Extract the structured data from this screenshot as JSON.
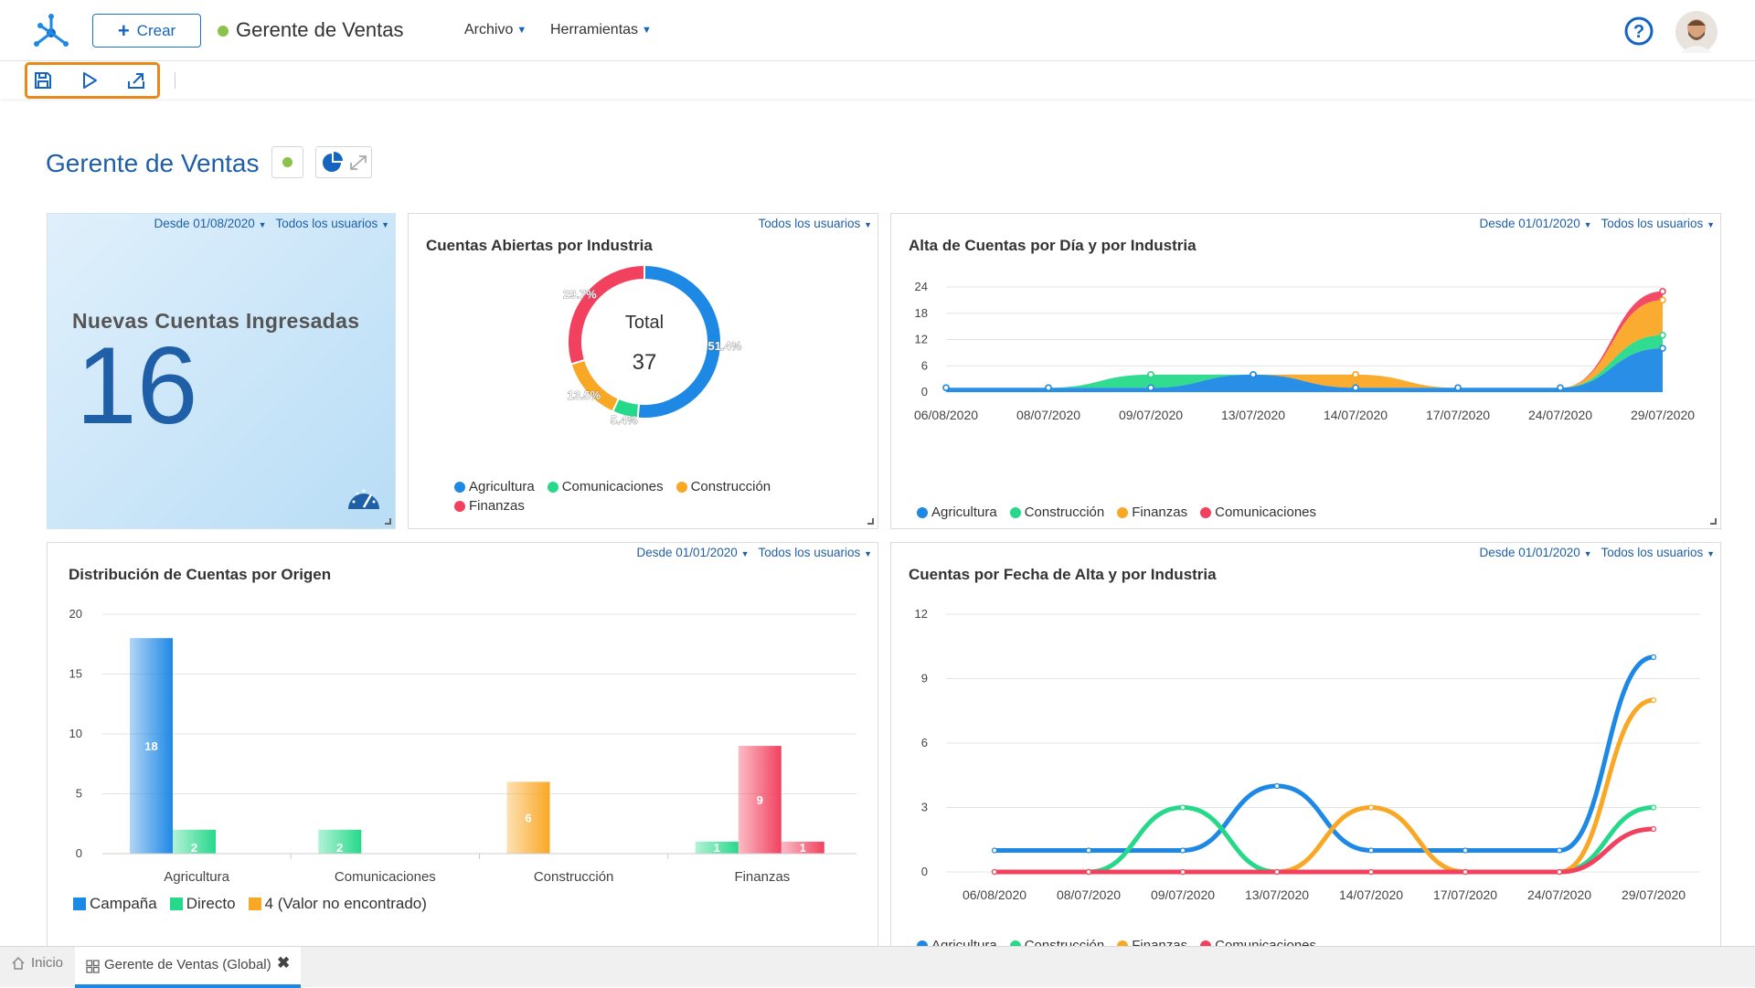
{
  "app": {
    "title": "Gerente de Ventas",
    "create_label": "Crear",
    "status_color": "#8bc34a"
  },
  "menu": [
    {
      "label": "Archivo"
    },
    {
      "label": "Herramientas"
    }
  ],
  "toolbar": {
    "icons": [
      "save-icon",
      "play-icon",
      "export-icon"
    ],
    "highlight_color": "#e8891a"
  },
  "page": {
    "title": "Gerente de Ventas"
  },
  "kpi": {
    "title": "Nuevas Cuentas Ingresadas",
    "value": "16",
    "date_filter": "Desde 01/08/2020",
    "user_filter": "Todos los usuarios"
  },
  "donut": {
    "title": "Cuentas Abiertas por Industria",
    "user_filter": "Todos los usuarios",
    "center_label": "Total",
    "center_value": "37",
    "chart_data": {
      "type": "pie",
      "categories": [
        "Agricultura",
        "Comunicaciones",
        "Construcción",
        "Finanzas"
      ],
      "values": [
        51.4,
        5.4,
        13.5,
        29.7
      ],
      "labels": [
        "51.4%",
        "5.4%",
        "13.5%",
        "29.7%"
      ],
      "colors": [
        "#1e88e5",
        "#26d98a",
        "#f9a825",
        "#f2415e"
      ]
    }
  },
  "area": {
    "title": "Alta de Cuentas por Día y por Industria",
    "date_filter": "Desde 01/01/2020",
    "user_filter": "Todos los usuarios",
    "chart_data": {
      "type": "area",
      "stacked": true,
      "x": [
        "06/08/2020",
        "08/07/2020",
        "09/07/2020",
        "13/07/2020",
        "14/07/2020",
        "17/07/2020",
        "24/07/2020",
        "29/07/2020"
      ],
      "yticks": [
        0,
        6,
        12,
        18,
        24
      ],
      "ylim": [
        0,
        24
      ],
      "series": [
        {
          "name": "Agricultura",
          "color": "#1e88e5",
          "values": [
            1,
            1,
            1,
            4,
            1,
            1,
            1,
            10
          ]
        },
        {
          "name": "Construcción",
          "color": "#26d98a",
          "values": [
            0,
            0,
            3,
            0,
            0,
            0,
            0,
            3
          ]
        },
        {
          "name": "Finanzas",
          "color": "#f9a825",
          "values": [
            0,
            0,
            0,
            0,
            3,
            0,
            0,
            8
          ]
        },
        {
          "name": "Comunicaciones",
          "color": "#f2415e",
          "values": [
            0,
            0,
            0,
            0,
            0,
            0,
            0,
            2
          ]
        }
      ]
    }
  },
  "bar": {
    "title": "Distribución de Cuentas por Origen",
    "date_filter": "Desde 01/01/2020",
    "user_filter": "Todos los usuarios",
    "chart_data": {
      "type": "bar",
      "categories": [
        "Agricultura",
        "Comunicaciones",
        "Construcción",
        "Finanzas"
      ],
      "yticks": [
        0,
        5,
        10,
        15,
        20
      ],
      "ylim": [
        0,
        20
      ],
      "series": [
        {
          "name": "Campaña",
          "color": "#1e88e5",
          "values": [
            18,
            null,
            null,
            null
          ]
        },
        {
          "name": "Directo",
          "color": "#26d98a",
          "values": [
            2,
            2,
            null,
            1
          ]
        },
        {
          "name": "4 (Valor no encontrado)",
          "color": "#f9a825",
          "values": [
            null,
            null,
            6,
            null
          ]
        },
        {
          "name": "",
          "color": "#f2415e",
          "values": [
            null,
            null,
            null,
            9
          ]
        },
        {
          "name": "",
          "color": "#f2415e",
          "values": [
            null,
            null,
            null,
            1
          ]
        }
      ],
      "legend": [
        "Campaña",
        "Directo",
        "4 (Valor no encontrado)"
      ]
    }
  },
  "line": {
    "title": "Cuentas por Fecha de Alta y por Industria",
    "date_filter": "Desde 01/01/2020",
    "user_filter": "Todos los usuarios",
    "chart_data": {
      "type": "line",
      "x": [
        "06/08/2020",
        "08/07/2020",
        "09/07/2020",
        "13/07/2020",
        "14/07/2020",
        "17/07/2020",
        "24/07/2020",
        "29/07/2020"
      ],
      "yticks": [
        0,
        3,
        6,
        9,
        12
      ],
      "ylim": [
        0,
        12
      ],
      "series": [
        {
          "name": "Agricultura",
          "color": "#1e88e5",
          "values": [
            1,
            1,
            1,
            4,
            1,
            1,
            1,
            10
          ]
        },
        {
          "name": "Construcción",
          "color": "#26d98a",
          "values": [
            0,
            0,
            3,
            0,
            0,
            0,
            0,
            3
          ]
        },
        {
          "name": "Finanzas",
          "color": "#f9a825",
          "values": [
            0,
            0,
            0,
            0,
            3,
            0,
            0,
            8
          ]
        },
        {
          "name": "Comunicaciones",
          "color": "#f2415e",
          "values": [
            0,
            0,
            0,
            0,
            0,
            0,
            0,
            2
          ]
        }
      ]
    }
  },
  "tabs": [
    {
      "label": "Inicio"
    },
    {
      "label": "Gerente de Ventas (Global)"
    }
  ]
}
